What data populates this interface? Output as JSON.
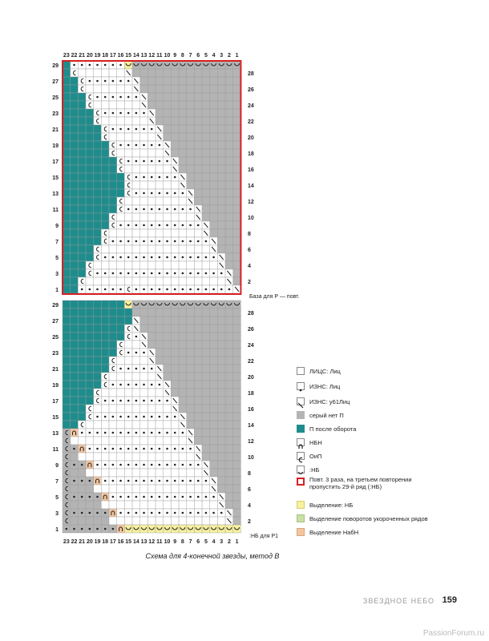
{
  "chart_labels": {
    "col_numbers": [
      "23",
      "22",
      "21",
      "20",
      "19",
      "18",
      "17",
      "16",
      "15",
      "14",
      "13",
      "12",
      "11",
      "10",
      "9",
      "8",
      "7",
      "6",
      "5",
      "4",
      "3",
      "2",
      "1"
    ],
    "upper_left_rows": [
      "29",
      "27",
      "25",
      "23",
      "21",
      "19",
      "17",
      "15",
      "13",
      "11",
      "9",
      "7",
      "5",
      "3",
      "1"
    ],
    "upper_right_rows": [
      "28",
      "26",
      "24",
      "22",
      "20",
      "18",
      "16",
      "14",
      "12",
      "10",
      "8",
      "6",
      "4",
      "2"
    ],
    "lower_left_rows": [
      "29",
      "27",
      "25",
      "23",
      "21",
      "19",
      "17",
      "15",
      "13",
      "11",
      "9",
      "7",
      "5",
      "3",
      "1"
    ],
    "lower_right_rows": [
      "28",
      "26",
      "24",
      "22",
      "20",
      "18",
      "16",
      "14",
      "12",
      "10",
      "8",
      "6",
      "4",
      "2"
    ],
    "base_note": "База для Р — повт.",
    "bottom_note": ":НБ для Р1"
  },
  "legend": [
    {
      "text": "ЛИЦС: Лиц",
      "swatch": "#ffffff",
      "mark": ""
    },
    {
      "text": "ИЗНС: Лиц",
      "swatch": "#ffffff",
      "mark": "dot"
    },
    {
      "text": "ИЗНС: у61Лиц",
      "swatch": "#ffffff",
      "mark": "slash"
    },
    {
      "text": "серый нет П",
      "swatch": "#b4b4b4",
      "mark": ""
    },
    {
      "text": "П после оборота",
      "swatch": "#1f8c8c",
      "mark": ""
    },
    {
      "text": "НБН",
      "swatch": "#ffffff",
      "mark": "arch"
    },
    {
      "text": "ОиП",
      "swatch": "#ffffff",
      "mark": "c"
    },
    {
      "text": ":НБ",
      "swatch": "#ffffff",
      "mark": "cup"
    },
    {
      "text": "Повт. 3 раза, на третьем повторении пропустить 29-й ряд (:НБ)",
      "swatch": "#ffffff",
      "mark": "red"
    },
    {
      "text": "Выделение: НБ",
      "swatch": "#f7f0a0",
      "mark": ""
    },
    {
      "text": "Выделение поворотов укороченных рядов",
      "swatch": "#c8e0a6",
      "mark": ""
    },
    {
      "text": "Выделение НабН",
      "swatch": "#f4c6a0",
      "mark": ""
    }
  ],
  "caption": "Схема для 4-конечной звезды, метод B",
  "footer": {
    "title": "ЗВЕЗДНОЕ НЕБО",
    "page": "159"
  },
  "watermark": "PassionForum.ru",
  "colors": {
    "teal": "#1f8c8c",
    "grey": "#b4b4b4",
    "red": "#d62020",
    "yellow": "#f7f0a0",
    "green": "#c8e0a6",
    "orange": "#f4c6a0"
  }
}
